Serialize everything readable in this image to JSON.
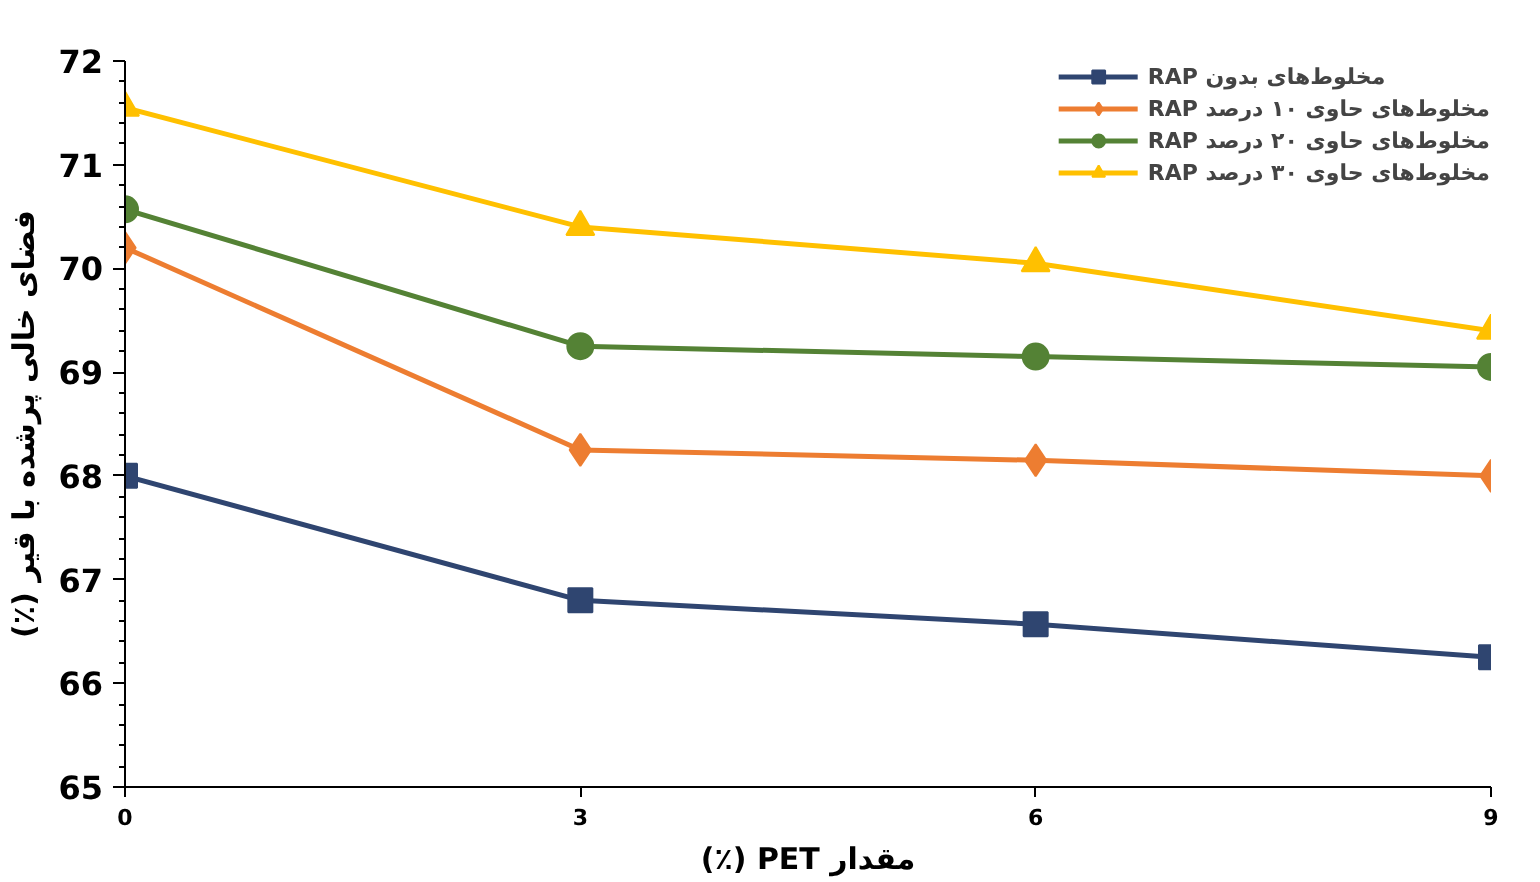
{
  "chart_data": {
    "type": "line",
    "xlabel": "مقدار PET (٪)",
    "ylabel": "فضای خالی پرشده با قیر (٪)",
    "x": [
      0,
      3,
      6,
      9
    ],
    "xlim": [
      0,
      9
    ],
    "xticks": [
      0,
      3,
      6,
      9
    ],
    "ylim": [
      65,
      72
    ],
    "yticks": [
      65,
      66,
      67,
      68,
      69,
      70,
      71,
      72
    ],
    "grid": false,
    "legend": "top right",
    "line_style": "solid",
    "series": [
      {
        "name": "مخلوط‌های بدون RAP",
        "color": "#2f4570",
        "marker": "square",
        "values": [
          68.0,
          66.8,
          66.57,
          66.25
        ]
      },
      {
        "name": "مخلوط‌های حاوی ۱۰ درصد RAP",
        "color": "#ed7d31",
        "marker": "diamond",
        "values": [
          70.2,
          68.25,
          68.15,
          68.0
        ]
      },
      {
        "name": "مخلوط‌های حاوی ۲۰ درصد RAP",
        "color": "#548235",
        "marker": "circle",
        "values": [
          70.57,
          69.25,
          69.15,
          69.05
        ]
      },
      {
        "name": "مخلوط‌های حاوی ۳۰ درصد RAP",
        "color": "#ffc000",
        "marker": "triangle",
        "values": [
          71.55,
          70.4,
          70.05,
          69.4
        ]
      }
    ]
  }
}
